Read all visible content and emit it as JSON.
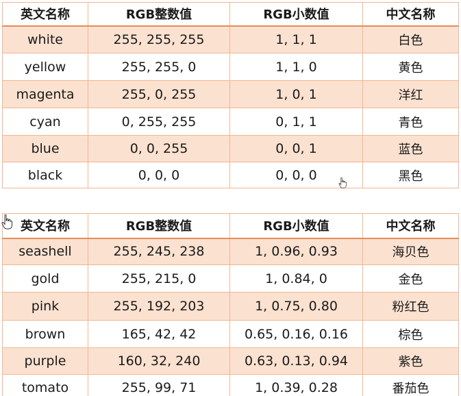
{
  "tables": [
    {
      "headers": [
        "英文名称",
        "RGB整数值",
        "RGB小数值",
        "中文名称"
      ],
      "rows": [
        [
          "white",
          "255, 255, 255",
          "1, 1, 1",
          "白色"
        ],
        [
          "yellow",
          "255, 255, 0",
          "1, 1, 0",
          "黄色"
        ],
        [
          "magenta",
          "255, 0, 255",
          "1, 0, 1",
          "洋红"
        ],
        [
          "cyan",
          "0, 255, 255",
          "0, 1, 1",
          "青色"
        ],
        [
          "blue",
          "0, 0, 255",
          "0, 0, 1",
          "蓝色"
        ],
        [
          "black",
          "0, 0, 0",
          "0, 0, 0",
          "黑色"
        ]
      ]
    },
    {
      "headers": [
        "英文名称",
        "RGB整数值",
        "RGB小数值",
        "中文名称"
      ],
      "rows": [
        [
          "seashell",
          "255, 245, 238",
          "1, 0.96, 0.93",
          "海贝色"
        ],
        [
          "gold",
          "255, 215, 0",
          "1, 0.84, 0",
          "金色"
        ],
        [
          "pink",
          "255, 192, 203",
          "1, 0.75, 0.80",
          "粉红色"
        ],
        [
          "brown",
          "165, 42, 42",
          "0.65, 0.16, 0.16",
          "棕色"
        ],
        [
          "purple",
          "160, 32, 240",
          "0.63, 0.13, 0.94",
          "紫色"
        ],
        [
          "tomato",
          "255, 99, 71",
          "1, 0.39, 0.28",
          "番茄色"
        ]
      ]
    }
  ],
  "colors": {
    "shaded_row": "#fbe1d0",
    "border": "#f3b68f",
    "header_rule": "#e58d58"
  },
  "icons": {
    "cursor_1": "hand-pointer-icon",
    "cursor_2": "hand-pointer-icon"
  }
}
